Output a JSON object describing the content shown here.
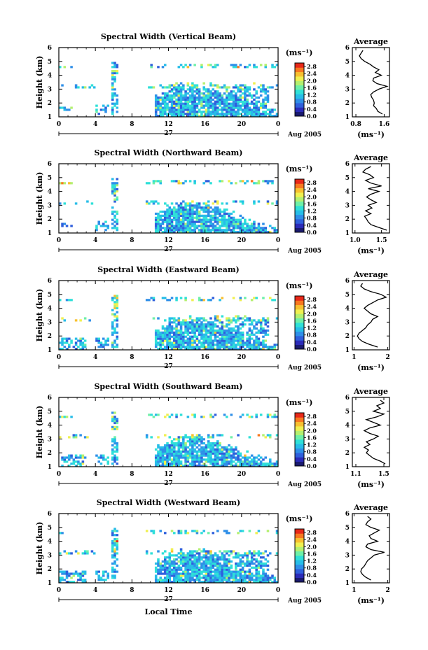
{
  "figure": {
    "xlabel": "Local Time",
    "ylabel": "Height (km)",
    "date_label": "Aug 2005",
    "day_label": "27",
    "colorbar_unit": "(ms⁻¹)",
    "avg_title": "Average",
    "avg_xlabel": "(ms⁻¹)"
  },
  "colormap": [
    "#1a1a6e",
    "#2b2bb8",
    "#2f5fdc",
    "#2f8fe8",
    "#27bde8",
    "#2fe0d8",
    "#6ef0a8",
    "#b4f070",
    "#f0f050",
    "#f8c030",
    "#f87820",
    "#e82818"
  ],
  "chart_data": [
    {
      "type": "heatmap",
      "title": "Spectral Width (Vertical Beam)",
      "x_ticks": [
        "0",
        "4",
        "8",
        "12",
        "16",
        "20",
        "0"
      ],
      "x_range": [
        0,
        24
      ],
      "y_ticks": [
        "1",
        "2",
        "3",
        "4",
        "5",
        "6"
      ],
      "y_range": [
        1,
        6
      ],
      "colorbar_ticks": [
        "0.0",
        "0.4",
        "0.8",
        "1.2",
        "1.6",
        "2.0",
        "2.4",
        "2.8"
      ],
      "colorbar_range": [
        0,
        3.0
      ],
      "average": {
        "x_ticks": [
          "0.8",
          "1.6"
        ],
        "x_range": [
          0.7,
          1.75
        ],
        "y_range": [
          1,
          6
        ],
        "y": [
          1.2,
          1.4,
          1.6,
          1.8,
          2.0,
          2.2,
          2.4,
          2.6,
          2.8,
          3.0,
          3.2,
          3.4,
          3.6,
          3.8,
          4.0,
          4.2,
          4.4,
          4.6,
          4.8,
          5.0,
          5.2,
          5.4,
          5.6,
          5.8
        ],
        "x": [
          1.55,
          1.42,
          1.38,
          1.3,
          1.32,
          1.3,
          1.25,
          1.22,
          1.3,
          1.45,
          1.68,
          1.4,
          1.28,
          1.3,
          1.52,
          1.35,
          1.45,
          1.3,
          1.2,
          1.05,
          0.95,
          0.9,
          0.95,
          1.0
        ]
      }
    },
    {
      "type": "heatmap",
      "title": "Spectral Width (Northward Beam)",
      "x_ticks": [
        "0",
        "4",
        "8",
        "12",
        "16",
        "20",
        "0"
      ],
      "x_range": [
        0,
        24
      ],
      "y_ticks": [
        "1",
        "2",
        "3",
        "4",
        "5",
        "6"
      ],
      "y_range": [
        1,
        6
      ],
      "colorbar_ticks": [
        "0.0",
        "0.4",
        "0.8",
        "1.2",
        "1.6",
        "2.0",
        "2.4",
        "2.8"
      ],
      "colorbar_range": [
        0,
        3.0
      ],
      "average": {
        "x_ticks": [
          "1.0",
          "1.5"
        ],
        "x_range": [
          0.95,
          1.65
        ],
        "y_range": [
          1,
          6
        ],
        "y": [
          1.2,
          1.4,
          1.6,
          1.8,
          2.0,
          2.2,
          2.4,
          2.6,
          2.8,
          3.0,
          3.2,
          3.4,
          3.6,
          3.8,
          4.0,
          4.2,
          4.4,
          4.6,
          4.8,
          5.0,
          5.2,
          5.4,
          5.6,
          5.8
        ],
        "x": [
          1.6,
          1.45,
          1.3,
          1.25,
          1.22,
          1.18,
          1.3,
          1.2,
          1.32,
          1.25,
          1.4,
          1.3,
          1.22,
          1.3,
          1.45,
          1.25,
          1.5,
          1.3,
          1.2,
          1.35,
          1.28,
          1.15,
          1.2,
          1.3
        ]
      }
    },
    {
      "type": "heatmap",
      "title": "Spectral Width (Eastward Beam)",
      "x_ticks": [
        "0",
        "4",
        "8",
        "12",
        "16",
        "20",
        "0"
      ],
      "x_range": [
        0,
        24
      ],
      "y_ticks": [
        "1",
        "2",
        "3",
        "4",
        "5",
        "6"
      ],
      "y_range": [
        1,
        6
      ],
      "colorbar_ticks": [
        "0.0",
        "0.4",
        "0.8",
        "1.2",
        "1.6",
        "2.0",
        "2.4",
        "2.8"
      ],
      "colorbar_range": [
        0,
        3.0
      ],
      "average": {
        "x_ticks": [
          "1",
          "2"
        ],
        "x_range": [
          0.95,
          2.05
        ],
        "y_range": [
          1,
          6
        ],
        "y": [
          1.2,
          1.4,
          1.6,
          1.8,
          2.0,
          2.2,
          2.4,
          2.6,
          2.8,
          3.0,
          3.2,
          3.4,
          3.6,
          3.8,
          4.0,
          4.2,
          4.4,
          4.6,
          4.8,
          5.0,
          5.2,
          5.4,
          5.6,
          5.8
        ],
        "x": [
          1.7,
          1.45,
          1.25,
          1.15,
          1.1,
          1.15,
          1.25,
          1.35,
          1.4,
          1.5,
          1.55,
          1.7,
          1.5,
          1.4,
          1.3,
          1.4,
          1.55,
          1.7,
          1.95,
          1.8,
          1.5,
          1.3,
          1.2,
          1.25
        ]
      }
    },
    {
      "type": "heatmap",
      "title": "Spectral Width (Southward Beam)",
      "x_ticks": [
        "0",
        "4",
        "8",
        "12",
        "16",
        "20",
        "0"
      ],
      "x_range": [
        0,
        24
      ],
      "y_ticks": [
        "1",
        "2",
        "3",
        "4",
        "5",
        "6"
      ],
      "y_range": [
        1,
        6
      ],
      "colorbar_ticks": [
        "0.0",
        "0.4",
        "0.8",
        "1.2",
        "1.6",
        "2.0",
        "2.4",
        "2.8"
      ],
      "colorbar_range": [
        0,
        3.0
      ],
      "average": {
        "x_ticks": [
          "1.1",
          "1.5"
        ],
        "x_range": [
          1.05,
          1.58
        ],
        "y_range": [
          1,
          6
        ],
        "y": [
          1.2,
          1.4,
          1.6,
          1.8,
          2.0,
          2.2,
          2.4,
          2.6,
          2.8,
          3.0,
          3.2,
          3.4,
          3.6,
          3.8,
          4.0,
          4.2,
          4.4,
          4.6,
          4.8,
          5.0,
          5.2,
          5.4,
          5.6,
          5.8
        ],
        "x": [
          1.52,
          1.45,
          1.35,
          1.3,
          1.25,
          1.28,
          1.22,
          1.3,
          1.25,
          1.35,
          1.42,
          1.3,
          1.22,
          1.3,
          1.45,
          1.35,
          1.25,
          1.4,
          1.5,
          1.35,
          1.45,
          1.4,
          1.5,
          1.45
        ]
      }
    },
    {
      "type": "heatmap",
      "title": "Spectral Width (Westward Beam)",
      "x_ticks": [
        "0",
        "4",
        "8",
        "12",
        "16",
        "20",
        "0"
      ],
      "x_range": [
        0,
        24
      ],
      "y_ticks": [
        "1",
        "2",
        "3",
        "4",
        "5",
        "6"
      ],
      "y_range": [
        1,
        6
      ],
      "colorbar_ticks": [
        "0.0",
        "0.4",
        "0.8",
        "1.2",
        "1.6",
        "2.0",
        "2.4",
        "2.8"
      ],
      "colorbar_range": [
        0,
        3.0
      ],
      "average": {
        "x_ticks": [
          "1",
          "2"
        ],
        "x_range": [
          0.95,
          2.05
        ],
        "y_range": [
          1,
          6
        ],
        "y": [
          1.2,
          1.4,
          1.6,
          1.8,
          2.0,
          2.2,
          2.4,
          2.6,
          2.8,
          3.0,
          3.2,
          3.4,
          3.6,
          3.8,
          4.0,
          4.2,
          4.4,
          4.6,
          4.8,
          5.0,
          5.2,
          5.4,
          5.6,
          5.8
        ],
        "x": [
          1.5,
          1.35,
          1.25,
          1.2,
          1.22,
          1.3,
          1.35,
          1.4,
          1.5,
          1.6,
          1.9,
          1.5,
          1.35,
          1.4,
          1.7,
          1.5,
          1.45,
          1.6,
          1.75,
          1.5,
          1.35,
          1.4,
          1.5,
          1.4
        ]
      }
    }
  ]
}
